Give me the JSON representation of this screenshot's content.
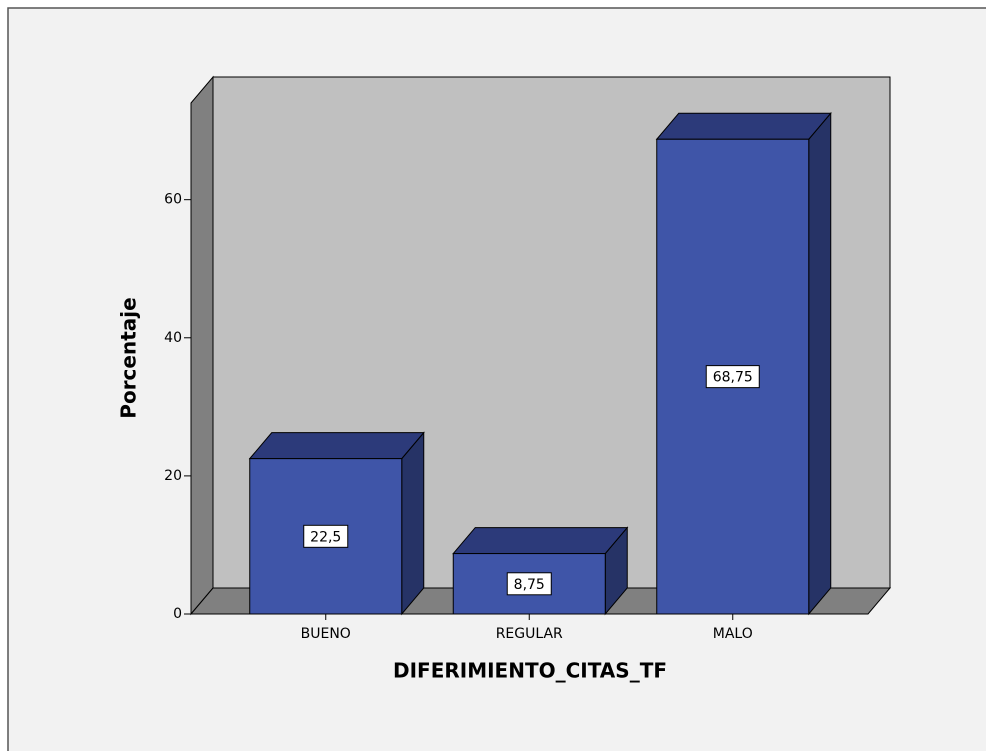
{
  "chart_data": {
    "type": "bar3d",
    "categories": [
      "BUENO",
      "REGULAR",
      "MALO"
    ],
    "values": [
      22.5,
      8.75,
      68.75
    ],
    "value_labels": [
      "22,5",
      "8,75",
      "68,75"
    ],
    "color": "#3f55a8",
    "x_label": "DIFERIMIENTO_CITAS_TF",
    "y_label": "Porcentaje",
    "ylim": [
      0,
      74
    ],
    "yticks": [
      0,
      20,
      40,
      60
    ],
    "grid": false
  }
}
